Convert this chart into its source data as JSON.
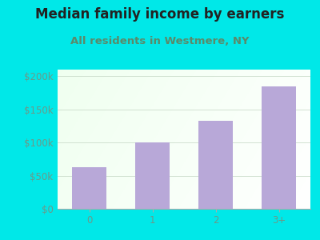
{
  "title": "Median family income by earners",
  "subtitle": "All residents in Westmere, NY",
  "categories": [
    "0",
    "1",
    "2",
    "3+"
  ],
  "values": [
    63000,
    100000,
    133000,
    185000
  ],
  "bar_color": "#b8a8d8",
  "outer_bg_color": "#00e8e8",
  "title_color": "#222222",
  "subtitle_color": "#5a8a6a",
  "tick_label_color": "#6a9a8a",
  "ytick_labels": [
    "$0",
    "$50k",
    "$100k",
    "$150k",
    "$200k"
  ],
  "ytick_values": [
    0,
    50000,
    100000,
    150000,
    200000
  ],
  "ylim": [
    0,
    210000
  ],
  "title_fontsize": 12,
  "subtitle_fontsize": 9.5,
  "tick_fontsize": 8.5
}
